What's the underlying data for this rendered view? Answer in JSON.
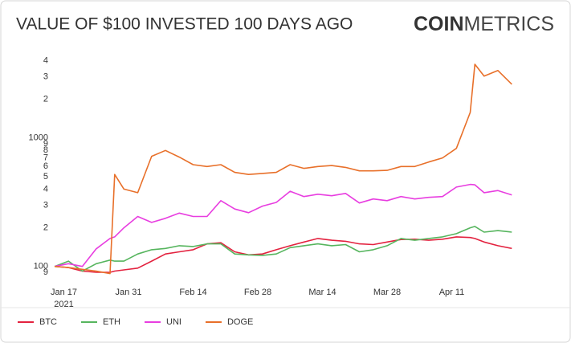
{
  "chart_data": {
    "type": "line",
    "title": "VALUE OF $100 INVESTED 100 DAYS AGO",
    "logo": {
      "bold": "COIN",
      "light": "METRICS"
    },
    "log_scale": true,
    "grid": false,
    "legend": "bottom-left",
    "x": [
      "2021-01-15",
      "2021-01-18",
      "2021-01-21",
      "2021-01-24",
      "2021-01-27",
      "2021-01-28",
      "2021-01-30",
      "2021-02-02",
      "2021-02-05",
      "2021-02-08",
      "2021-02-11",
      "2021-02-14",
      "2021-02-17",
      "2021-02-20",
      "2021-02-23",
      "2021-02-26",
      "2021-03-01",
      "2021-03-04",
      "2021-03-07",
      "2021-03-10",
      "2021-03-13",
      "2021-03-16",
      "2021-03-19",
      "2021-03-22",
      "2021-03-25",
      "2021-03-28",
      "2021-03-31",
      "2021-04-03",
      "2021-04-06",
      "2021-04-09",
      "2021-04-12",
      "2021-04-15",
      "2021-04-16",
      "2021-04-18",
      "2021-04-21",
      "2021-04-24"
    ],
    "xlim": [
      "2021-01-15",
      "2021-04-25"
    ],
    "xticks": [
      {
        "value": "2021-01-17",
        "label": "Jan 17"
      },
      {
        "value": "2021-01-31",
        "label": "Jan 31"
      },
      {
        "value": "2021-02-14",
        "label": "Feb 14"
      },
      {
        "value": "2021-02-28",
        "label": "Feb 28"
      },
      {
        "value": "2021-03-14",
        "label": "Mar 14"
      },
      {
        "value": "2021-03-28",
        "label": "Mar 28"
      },
      {
        "value": "2021-04-11",
        "label": "Apr 11"
      }
    ],
    "xtick_year": "2021",
    "ylim": [
      85,
      5000
    ],
    "yticks": [
      {
        "value": 90,
        "label": "9"
      },
      100,
      {
        "value": 200,
        "label": "2"
      },
      {
        "value": 300,
        "label": "3"
      },
      {
        "value": 400,
        "label": "4"
      },
      {
        "value": 500,
        "label": "5"
      },
      {
        "value": 600,
        "label": "6"
      },
      {
        "value": 700,
        "label": "7"
      },
      {
        "value": 800,
        "label": "8"
      },
      {
        "value": 900,
        "label": "9"
      },
      1000,
      {
        "value": 2000,
        "label": "2"
      },
      {
        "value": 3000,
        "label": "3"
      },
      {
        "value": 4000,
        "label": "4"
      }
    ],
    "series": [
      {
        "name": "BTC",
        "color": "#e3223f",
        "values": [
          100,
          98,
          92,
          90,
          90,
          92,
          94,
          97,
          110,
          125,
          130,
          135,
          150,
          153,
          130,
          123,
          125,
          135,
          145,
          155,
          165,
          160,
          157,
          150,
          148,
          155,
          162,
          163,
          160,
          163,
          170,
          168,
          165,
          155,
          145,
          138
        ]
      },
      {
        "name": "ETH",
        "color": "#56b55e",
        "values": [
          100,
          110,
          92,
          105,
          112,
          110,
          110,
          125,
          135,
          138,
          145,
          143,
          150,
          150,
          125,
          123,
          122,
          125,
          140,
          145,
          150,
          145,
          148,
          130,
          135,
          145,
          165,
          160,
          165,
          170,
          180,
          200,
          205,
          185,
          190,
          185
        ]
      },
      {
        "name": "UNI",
        "color": "#e83ee0",
        "values": [
          100,
          105,
          100,
          137,
          165,
          170,
          200,
          245,
          220,
          237,
          260,
          245,
          245,
          325,
          280,
          262,
          295,
          315,
          385,
          350,
          365,
          355,
          370,
          312,
          335,
          325,
          350,
          335,
          345,
          350,
          415,
          435,
          432,
          375,
          390,
          360
        ]
      },
      {
        "name": "DOGE",
        "color": "#e8702a",
        "values": [
          100,
          98,
          95,
          92,
          88,
          520,
          400,
          375,
          720,
          800,
          710,
          620,
          600,
          620,
          540,
          520,
          530,
          540,
          620,
          580,
          600,
          610,
          590,
          555,
          555,
          560,
          600,
          600,
          650,
          700,
          830,
          1580,
          3750,
          3030,
          3350,
          2620
        ]
      }
    ]
  }
}
